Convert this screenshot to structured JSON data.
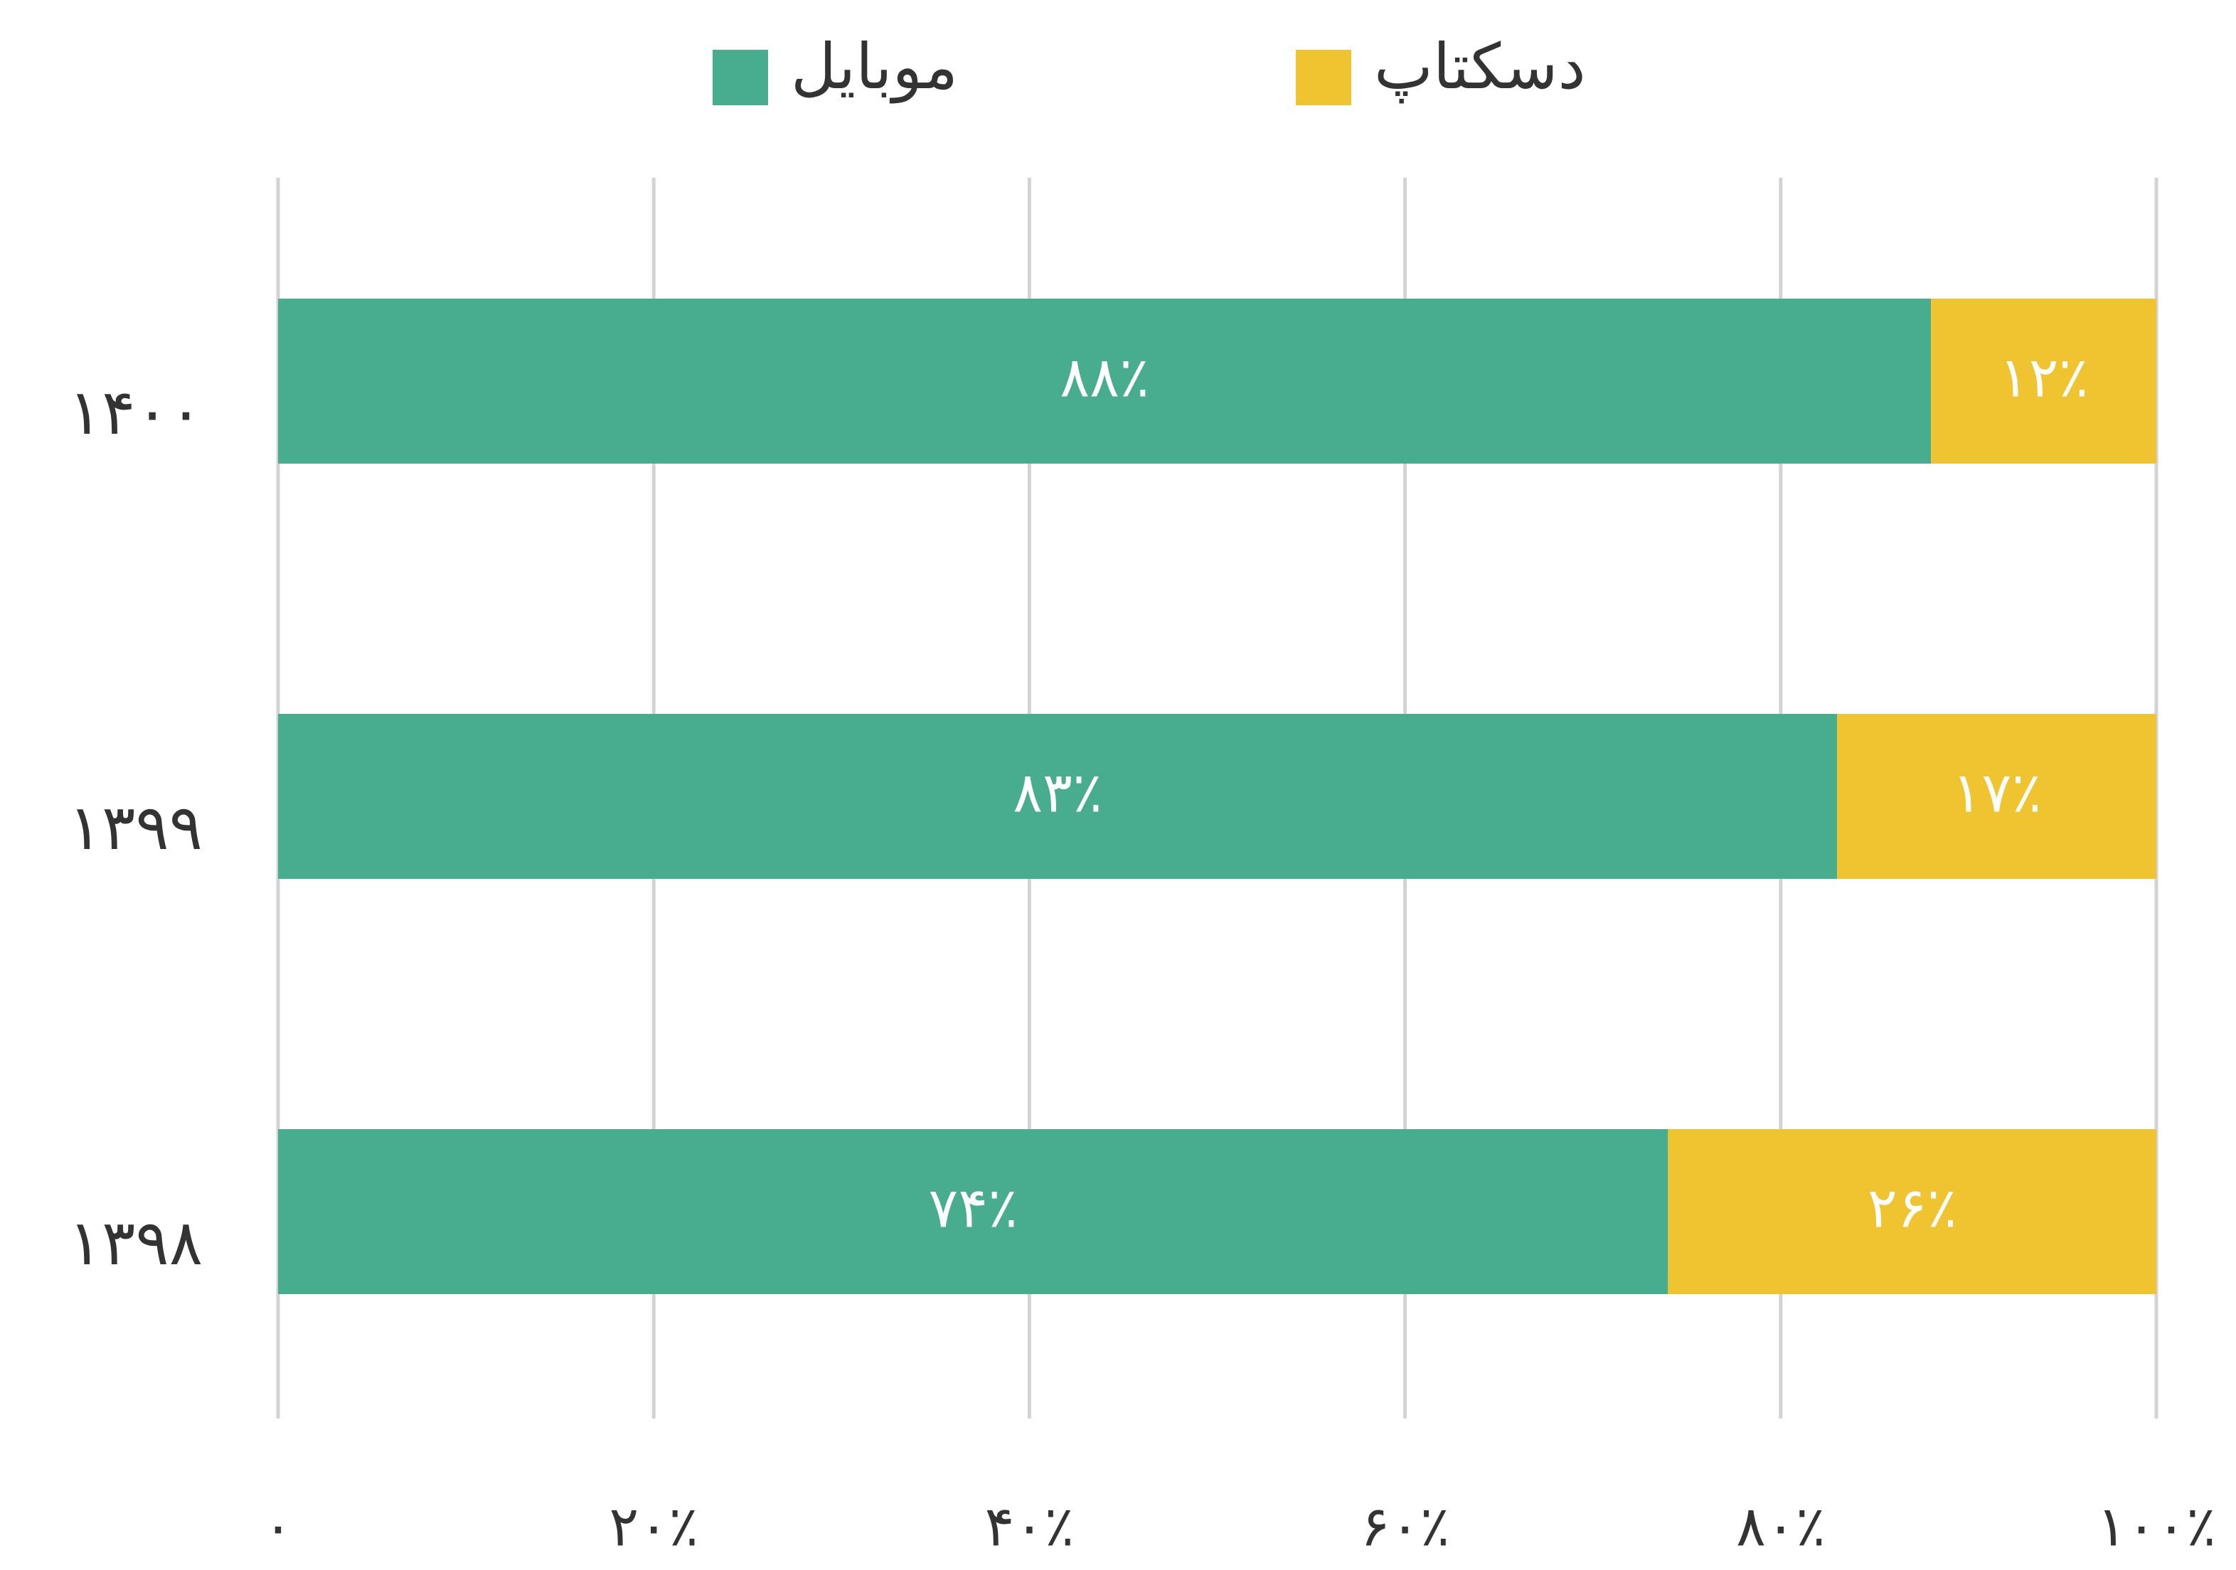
{
  "chart_data": {
    "type": "stacked_bar_horizontal",
    "categories": [
      "۱۴۰۰",
      "۱۳۹۹",
      "۱۳۹۸"
    ],
    "series": [
      {
        "name": "موبایل",
        "color": "#48ad8e",
        "values": [
          88,
          83,
          74
        ],
        "value_labels": [
          "۸۸٪",
          "۸۳٪",
          "۷۴٪"
        ]
      },
      {
        "name": "دسکتاپ",
        "color": "#f0c431",
        "values": [
          12,
          17,
          26
        ],
        "value_labels": [
          "۱۲٪",
          "۱۷٪",
          "۲۶٪"
        ]
      }
    ],
    "xlim": [
      0,
      100
    ],
    "xticks": [
      {
        "value": 0,
        "label": "۰"
      },
      {
        "value": 20,
        "label": "۲۰٪"
      },
      {
        "value": 40,
        "label": "۴۰٪"
      },
      {
        "value": 60,
        "label": "۶۰٪"
      },
      {
        "value": 80,
        "label": "۸۰٪"
      },
      {
        "value": 100,
        "label": "۱۰۰٪"
      }
    ],
    "grid": true,
    "legend": "top"
  }
}
